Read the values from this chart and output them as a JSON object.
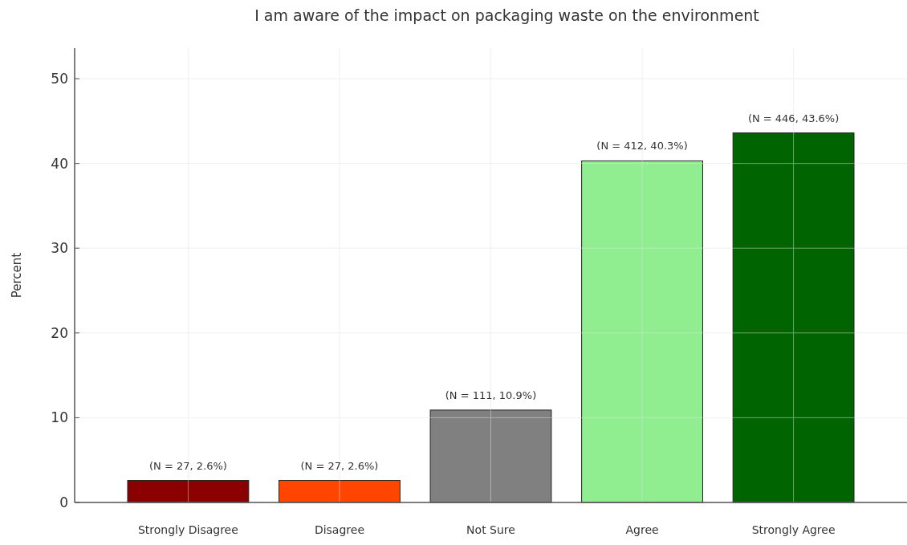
{
  "chart_data": {
    "type": "bar",
    "title": "I am aware of the impact on packaging waste on the environment",
    "ylabel": "Percent",
    "categories": [
      "Strongly Disagree",
      "Disagree",
      "Not Sure",
      "Agree",
      "Strongly Agree"
    ],
    "values": [
      2.6,
      2.6,
      10.9,
      40.3,
      43.6
    ],
    "colors": [
      "#8b0000",
      "#ff4500",
      "#808080",
      "#90ee90",
      "#006400"
    ],
    "value_labels": [
      "(N = 27, 2.6%)",
      "(N = 27, 2.6%)",
      "(N = 111, 10.9%)",
      "(N = 412, 40.3%)",
      "(N = 446, 43.6%)"
    ],
    "ylim": [
      0,
      53.6
    ],
    "yticks": [
      0,
      10,
      20,
      30,
      40,
      50
    ],
    "grid": true
  }
}
